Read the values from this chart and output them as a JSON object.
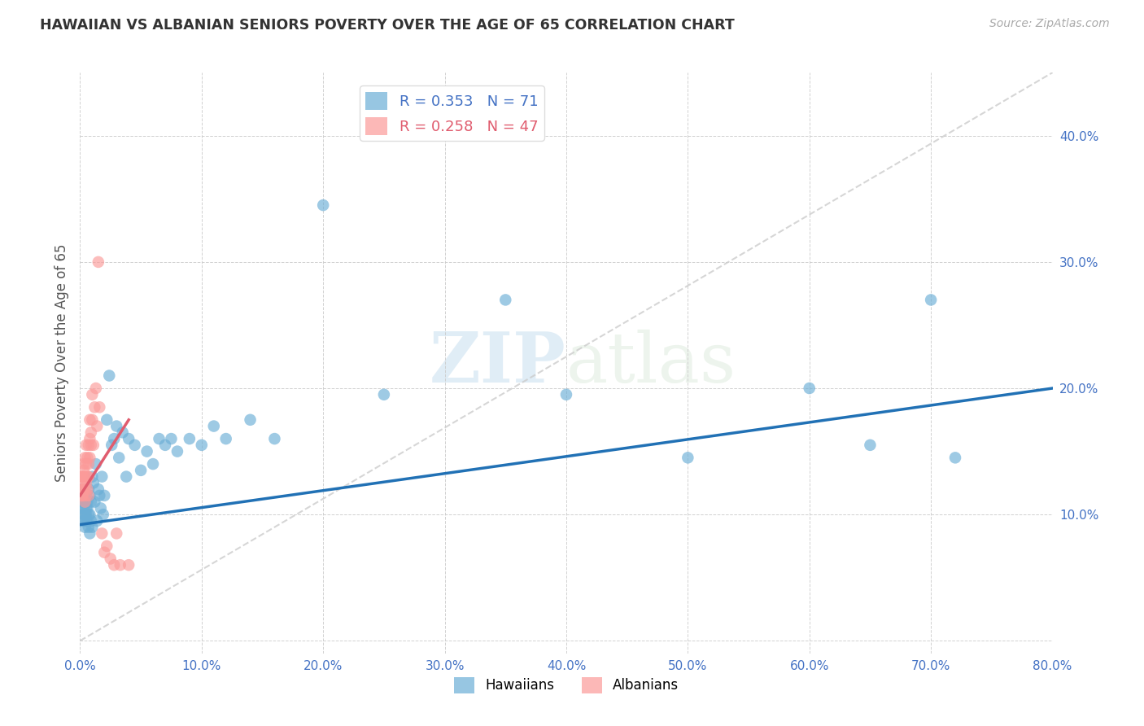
{
  "title": "HAWAIIAN VS ALBANIAN SENIORS POVERTY OVER THE AGE OF 65 CORRELATION CHART",
  "source": "Source: ZipAtlas.com",
  "ylabel": "Seniors Poverty Over the Age of 65",
  "xlim": [
    0,
    0.8
  ],
  "ylim": [
    -0.01,
    0.45
  ],
  "xticks": [
    0.0,
    0.1,
    0.2,
    0.3,
    0.4,
    0.5,
    0.6,
    0.7,
    0.8
  ],
  "xticklabels": [
    "0.0%",
    "10.0%",
    "20.0%",
    "30.0%",
    "40.0%",
    "50.0%",
    "60.0%",
    "70.0%",
    "80.0%"
  ],
  "yticks": [
    0.0,
    0.1,
    0.2,
    0.3,
    0.4
  ],
  "yticklabels": [
    "",
    "10.0%",
    "20.0%",
    "30.0%",
    "40.0%"
  ],
  "hawaiian_R": 0.353,
  "hawaiian_N": 71,
  "albanian_R": 0.258,
  "albanian_N": 47,
  "hawaiian_color": "#6baed6",
  "albanian_color": "#fb9a99",
  "hawaiian_line_color": "#2171b5",
  "albanian_line_color": "#e05c6e",
  "diagonal_color": "#cccccc",
  "background_color": "#ffffff",
  "watermark_zip": "ZIP",
  "watermark_atlas": "atlas",
  "hawaiian_x": [
    0.001,
    0.001,
    0.002,
    0.002,
    0.002,
    0.003,
    0.003,
    0.003,
    0.003,
    0.004,
    0.004,
    0.004,
    0.005,
    0.005,
    0.005,
    0.005,
    0.006,
    0.006,
    0.006,
    0.007,
    0.007,
    0.007,
    0.008,
    0.008,
    0.008,
    0.009,
    0.009,
    0.01,
    0.01,
    0.011,
    0.012,
    0.013,
    0.014,
    0.015,
    0.016,
    0.017,
    0.018,
    0.019,
    0.02,
    0.022,
    0.024,
    0.026,
    0.028,
    0.03,
    0.032,
    0.035,
    0.038,
    0.04,
    0.045,
    0.05,
    0.055,
    0.06,
    0.065,
    0.07,
    0.075,
    0.08,
    0.09,
    0.1,
    0.11,
    0.12,
    0.14,
    0.16,
    0.2,
    0.25,
    0.35,
    0.4,
    0.5,
    0.6,
    0.65,
    0.7,
    0.72
  ],
  "hawaiian_y": [
    0.115,
    0.105,
    0.12,
    0.11,
    0.095,
    0.1,
    0.115,
    0.095,
    0.105,
    0.11,
    0.1,
    0.09,
    0.115,
    0.105,
    0.095,
    0.1,
    0.11,
    0.095,
    0.105,
    0.12,
    0.1,
    0.09,
    0.115,
    0.1,
    0.085,
    0.11,
    0.095,
    0.13,
    0.09,
    0.125,
    0.11,
    0.14,
    0.095,
    0.12,
    0.115,
    0.105,
    0.13,
    0.1,
    0.115,
    0.175,
    0.21,
    0.155,
    0.16,
    0.17,
    0.145,
    0.165,
    0.13,
    0.16,
    0.155,
    0.135,
    0.15,
    0.14,
    0.16,
    0.155,
    0.16,
    0.15,
    0.16,
    0.155,
    0.17,
    0.16,
    0.175,
    0.16,
    0.345,
    0.195,
    0.27,
    0.195,
    0.145,
    0.2,
    0.155,
    0.27,
    0.145
  ],
  "albanian_x": [
    0.001,
    0.001,
    0.001,
    0.002,
    0.002,
    0.002,
    0.002,
    0.003,
    0.003,
    0.003,
    0.003,
    0.004,
    0.004,
    0.004,
    0.004,
    0.005,
    0.005,
    0.005,
    0.005,
    0.006,
    0.006,
    0.006,
    0.007,
    0.007,
    0.007,
    0.007,
    0.008,
    0.008,
    0.008,
    0.009,
    0.009,
    0.01,
    0.01,
    0.011,
    0.012,
    0.013,
    0.014,
    0.015,
    0.016,
    0.018,
    0.02,
    0.022,
    0.025,
    0.028,
    0.03,
    0.033,
    0.04
  ],
  "albanian_y": [
    0.115,
    0.125,
    0.13,
    0.115,
    0.12,
    0.13,
    0.115,
    0.14,
    0.13,
    0.12,
    0.135,
    0.145,
    0.13,
    0.12,
    0.11,
    0.14,
    0.155,
    0.125,
    0.115,
    0.145,
    0.13,
    0.12,
    0.155,
    0.14,
    0.13,
    0.115,
    0.175,
    0.16,
    0.145,
    0.165,
    0.155,
    0.195,
    0.175,
    0.155,
    0.185,
    0.2,
    0.17,
    0.3,
    0.185,
    0.085,
    0.07,
    0.075,
    0.065,
    0.06,
    0.085,
    0.06,
    0.06
  ],
  "hawaiian_line_x0": 0.0,
  "hawaiian_line_y0": 0.092,
  "hawaiian_line_x1": 0.8,
  "hawaiian_line_y1": 0.2,
  "albanian_line_x0": 0.0,
  "albanian_line_y0": 0.115,
  "albanian_line_x1": 0.04,
  "albanian_line_y1": 0.175
}
